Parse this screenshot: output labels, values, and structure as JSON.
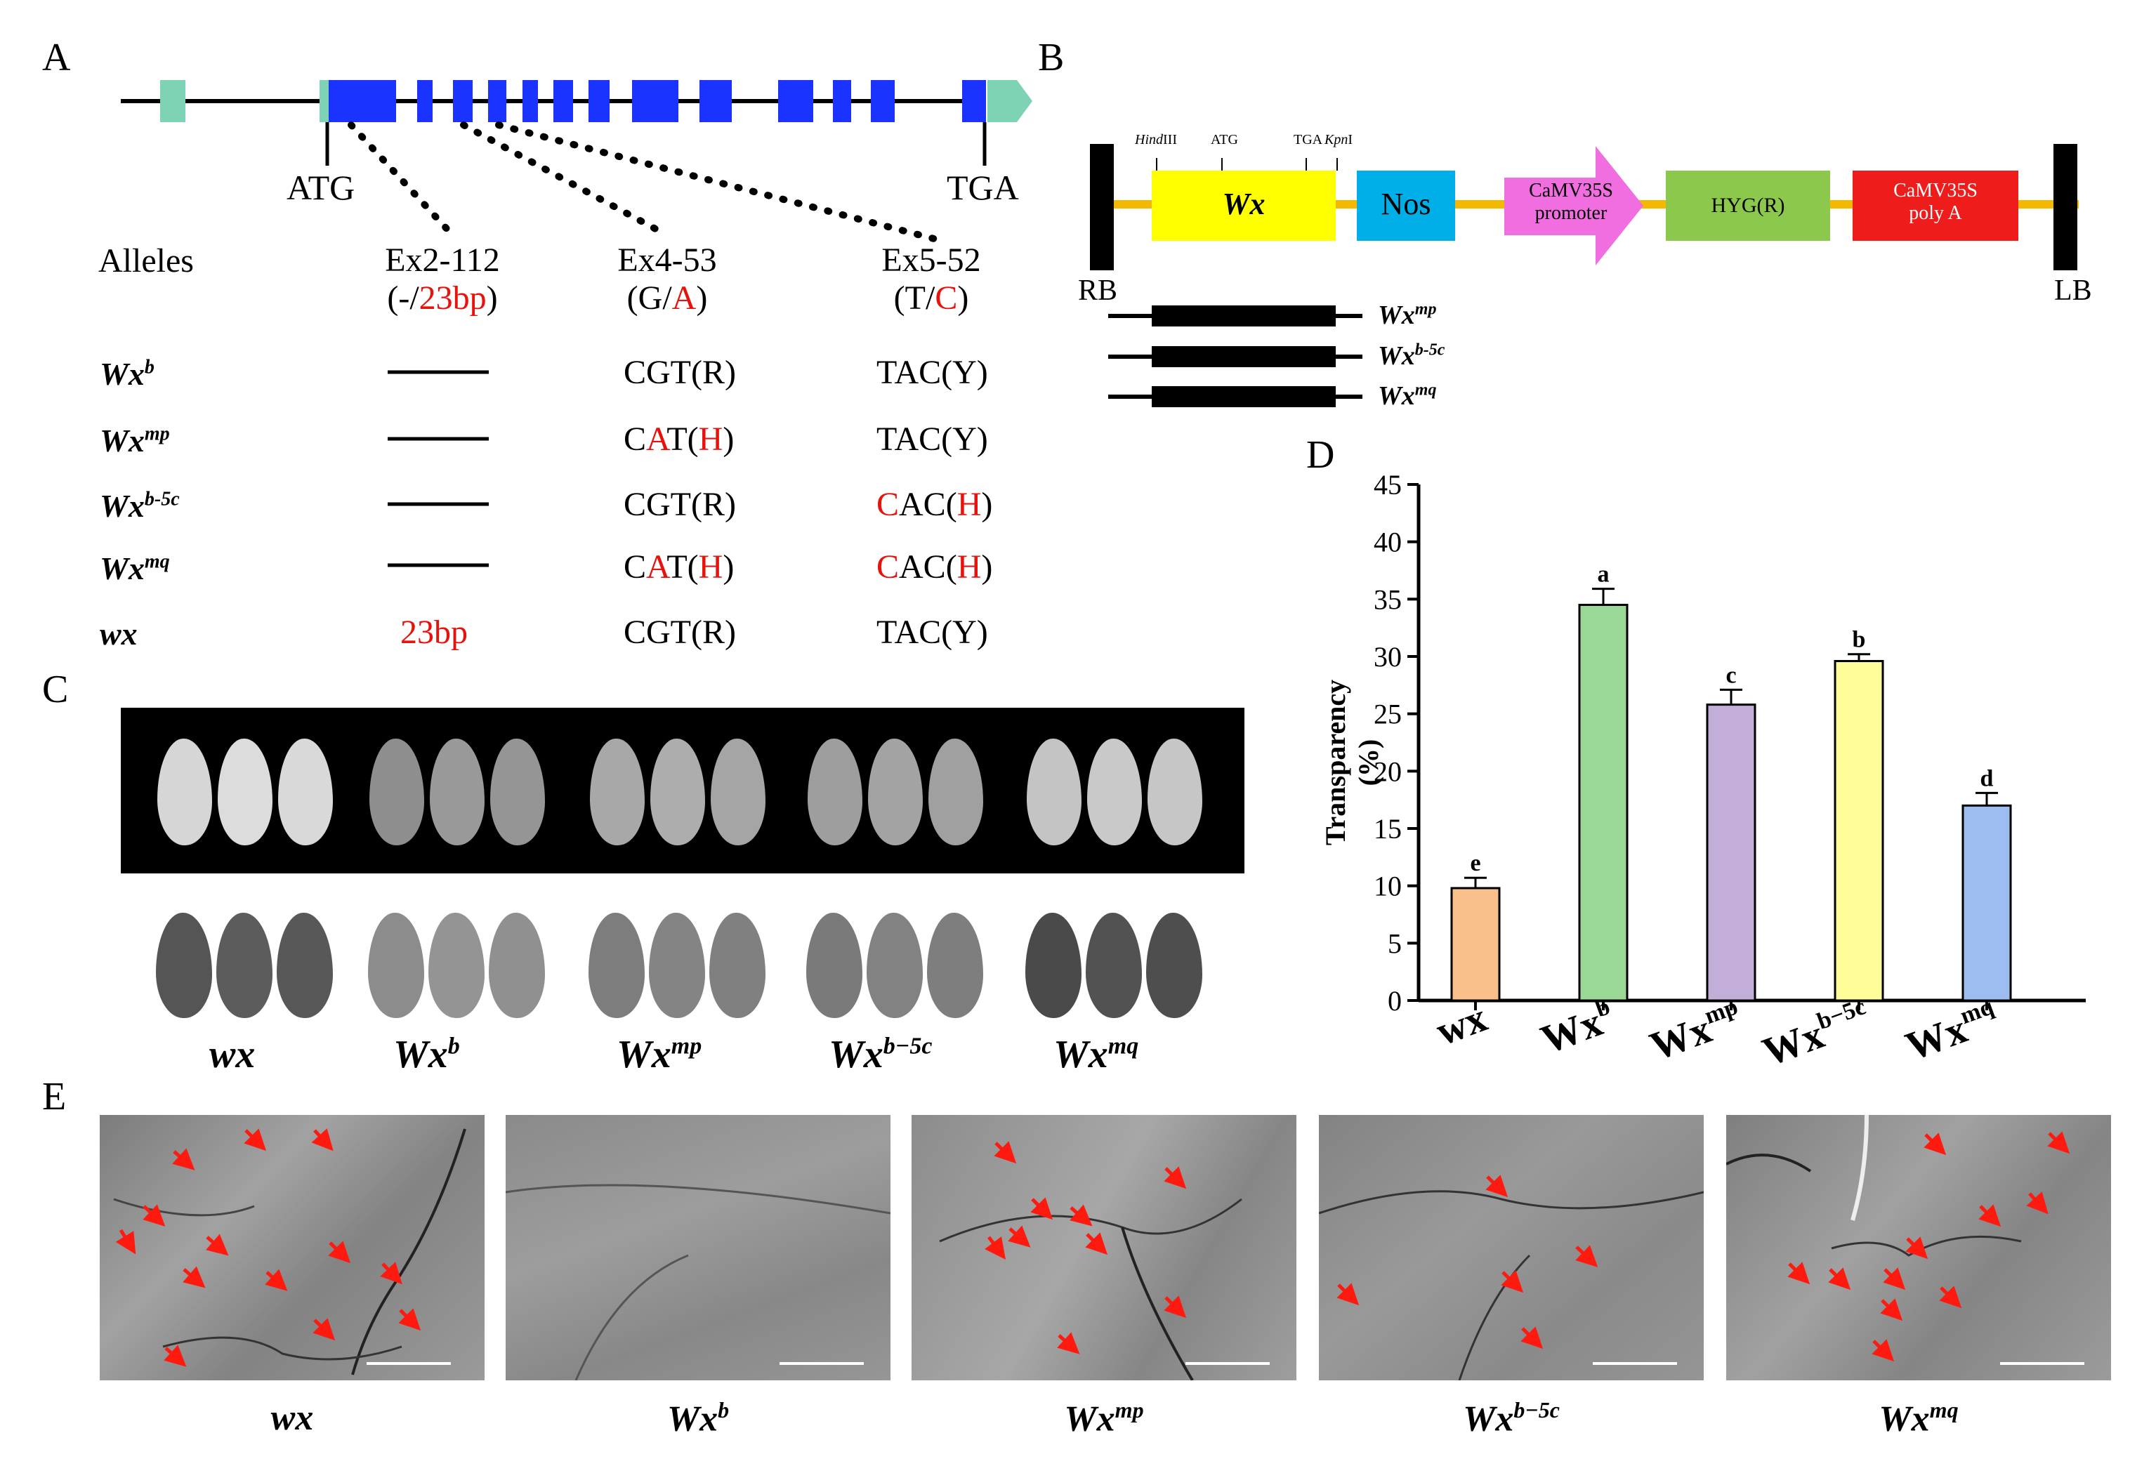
{
  "panels": {
    "a": "A",
    "b": "B",
    "c": "C",
    "d": "D",
    "e": "E"
  },
  "panel_a": {
    "atg": "ATG",
    "tga": "TGA",
    "alleles_header": "Alleles",
    "sites": [
      {
        "name": "Ex2-112",
        "alt_prefix": "(-/",
        "alt": "23bp",
        "alt_suffix": ")"
      },
      {
        "name": "Ex4-53",
        "alt_prefix": "(G/",
        "alt": "A",
        "alt_suffix": ")"
      },
      {
        "name": "Ex5-52",
        "alt_prefix": "(T/",
        "alt": "C",
        "alt_suffix": ")"
      }
    ],
    "rows": [
      {
        "base": "Wx",
        "sup": "b",
        "ex2": "",
        "ex4": "CGT(R)",
        "ex5": "TAC(Y)"
      },
      {
        "base": "Wx",
        "sup": "mp",
        "ex2": "",
        "ex4_a": "C",
        "ex4_b": "A",
        "ex4_c": "T(",
        "ex4_d": "H",
        "ex4_e": ")",
        "ex5": "TAC(Y)"
      },
      {
        "base": "Wx",
        "sup": "b-5c",
        "ex2": "",
        "ex4": "CGT(R)",
        "ex5_a": "C",
        "ex5_b": "AC(",
        "ex5_c": "H",
        "ex5_d": ")"
      },
      {
        "base": "Wx",
        "sup": "mq",
        "ex2": "",
        "ex4_a": "C",
        "ex4_b": "A",
        "ex4_c": "T(",
        "ex4_d": "H",
        "ex4_e": ")",
        "ex5_a": "C",
        "ex5_b": "AC(",
        "ex5_c": "H",
        "ex5_d": ")"
      },
      {
        "base": "wx",
        "sup": "",
        "ex2": "23bp",
        "ex4": "CGT(R)",
        "ex5": "TAC(Y)"
      }
    ]
  },
  "panel_b": {
    "sites": [
      "HindIII",
      "ATG",
      "TGA",
      "KpnI"
    ],
    "hind_italic": "Hind",
    "hind_rest": "III",
    "kpn_italic": "Kpn",
    "kpn_rest": "I",
    "wx": "Wx",
    "nos": "Nos",
    "promoter_line1": "CaMV35S",
    "promoter_line2": "promoter",
    "hyg": "HYG(R)",
    "polya_line1": "CaMV35S",
    "polya_line2": "poly A",
    "rb": "RB",
    "lb": "LB",
    "constructs": [
      {
        "base": "Wx",
        "sup": "mp"
      },
      {
        "base": "Wx",
        "sup": "b-5c"
      },
      {
        "base": "Wx",
        "sup": "mq"
      }
    ],
    "colors": {
      "backbone": "#f5b800",
      "wx": "#ffff00",
      "nos": "#00aee8",
      "promoter": "#f06ee0",
      "hyg": "#8cc84b",
      "polya": "#ef1c1c"
    }
  },
  "panel_c": {
    "labels": [
      {
        "base": "wx",
        "sup": ""
      },
      {
        "base": "Wx",
        "sup": "b"
      },
      {
        "base": "Wx",
        "sup": "mp"
      },
      {
        "base": "Wx",
        "sup": "b−5c"
      },
      {
        "base": "Wx",
        "sup": "mq"
      }
    ]
  },
  "chart_data": {
    "type": "bar",
    "categories": [
      "wx",
      "Wx^b",
      "Wx^mp",
      "Wx^b-5c",
      "Wx^mq"
    ],
    "category_labels": [
      {
        "base": "wx",
        "sup": ""
      },
      {
        "base": "Wx",
        "sup": "b"
      },
      {
        "base": "Wx",
        "sup": "mp"
      },
      {
        "base": "Wx",
        "sup": "b−5c"
      },
      {
        "base": "Wx",
        "sup": "mq"
      }
    ],
    "values": [
      9.8,
      34.5,
      25.8,
      29.6,
      17.0
    ],
    "errors": [
      0.9,
      1.4,
      1.3,
      0.6,
      1.1
    ],
    "significance": [
      "e",
      "a",
      "c",
      "b",
      "d"
    ],
    "colors": [
      "#f9c08c",
      "#99d895",
      "#c2aed8",
      "#fffd99",
      "#9dbdf1"
    ],
    "ylabel": "Transparency (%)",
    "ylim": [
      0,
      45
    ],
    "yticks": [
      0,
      5,
      10,
      15,
      20,
      25,
      30,
      35,
      40,
      45
    ],
    "grid": false
  },
  "panel_e": {
    "labels": [
      {
        "base": "wx",
        "sup": ""
      },
      {
        "base": "Wx",
        "sup": "b"
      },
      {
        "base": "Wx",
        "sup": "mp"
      },
      {
        "base": "Wx",
        "sup": "b−5c"
      },
      {
        "base": "Wx",
        "sup": "mq"
      }
    ]
  }
}
